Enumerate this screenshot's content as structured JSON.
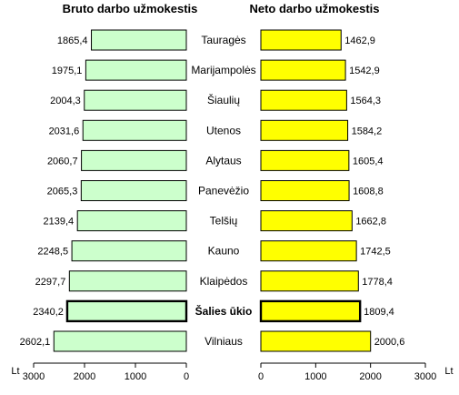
{
  "chart_data": [
    {
      "type": "bar",
      "orientation": "horizontal",
      "direction": "right-to-left",
      "title": "Bruto darbo užmokestis",
      "unit_label": "Lt",
      "categories": [
        "Tauragės",
        "Marijampolės",
        "Šiaulių",
        "Utenos",
        "Alytaus",
        "Panevėžio",
        "Telšių",
        "Kauno",
        "Klaipėdos",
        "Šalies ūkio",
        "Vilniaus"
      ],
      "values": [
        1865.4,
        1975.1,
        2004.3,
        2031.6,
        2060.7,
        2065.3,
        2139.4,
        2248.5,
        2297.7,
        2340.2,
        2602.1
      ],
      "value_labels": [
        "1865,4",
        "1975,1",
        "2004,3",
        "2031,6",
        "2060,7",
        "2065,3",
        "2139,4",
        "2248,5",
        "2297,7",
        "2340,2",
        "2602,1"
      ],
      "xlim": [
        0,
        3000
      ],
      "ticks": [
        3000,
        2000,
        1000,
        0
      ],
      "tick_labels": [
        "3000",
        "2000",
        "1000",
        "0"
      ],
      "bar_color": "#ccffcc",
      "highlight": "Šalies ūkio"
    },
    {
      "type": "bar",
      "orientation": "horizontal",
      "direction": "left-to-right",
      "title": "Neto darbo užmokestis",
      "unit_label": "Lt",
      "categories": [
        "Tauragės",
        "Marijampolės",
        "Šiaulių",
        "Utenos",
        "Alytaus",
        "Panevėžio",
        "Telšių",
        "Kauno",
        "Klaipėdos",
        "Šalies ūkio",
        "Vilniaus"
      ],
      "values": [
        1462.9,
        1542.9,
        1564.3,
        1584.2,
        1605.4,
        1608.8,
        1662.8,
        1742.5,
        1778.4,
        1809.4,
        2000.6
      ],
      "value_labels": [
        "1462,9",
        "1542,9",
        "1564,3",
        "1584,2",
        "1605,4",
        "1608,8",
        "1662,8",
        "1742,5",
        "1778,4",
        "1809,4",
        "2000,6"
      ],
      "xlim": [
        0,
        3000
      ],
      "ticks": [
        0,
        1000,
        2000,
        3000
      ],
      "tick_labels": [
        "0",
        "1000",
        "2000",
        "3000"
      ],
      "bar_color": "#ffff00",
      "highlight": "Šalies ūkio"
    }
  ]
}
